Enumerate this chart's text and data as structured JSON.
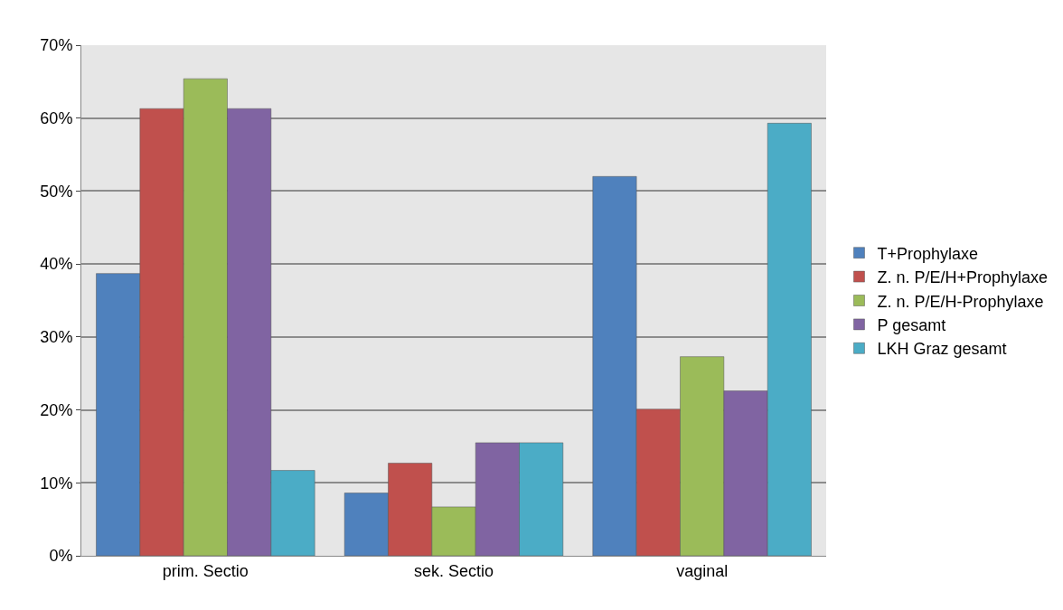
{
  "chart_data": {
    "type": "bar",
    "categories": [
      "prim. Sectio",
      "sek. Sectio",
      "vaginal"
    ],
    "series": [
      {
        "name": "T+Prophylaxe",
        "color": "#4f81bd",
        "values": [
          38.7,
          8.6,
          52.0
        ]
      },
      {
        "name": "Z. n. P/E/H+Prophylaxe",
        "color": "#c0504d",
        "values": [
          61.3,
          12.7,
          20.1
        ]
      },
      {
        "name": "Z. n. P/E/H-Prophylaxe",
        "color": "#9bbb59",
        "values": [
          65.4,
          6.7,
          27.3
        ]
      },
      {
        "name": "P gesamt",
        "color": "#8064a2",
        "values": [
          61.3,
          15.5,
          22.6
        ]
      },
      {
        "name": "LKH Graz gesamt",
        "color": "#4bacc6",
        "values": [
          11.7,
          15.5,
          59.3
        ]
      }
    ],
    "ylim": [
      0,
      70
    ],
    "yticks": [
      {
        "value": 0,
        "label": "0%"
      },
      {
        "value": 10,
        "label": "10%"
      },
      {
        "value": 20,
        "label": "20%"
      },
      {
        "value": 30,
        "label": "30%"
      },
      {
        "value": 40,
        "label": "40%"
      },
      {
        "value": 50,
        "label": "50%"
      },
      {
        "value": 60,
        "label": "60%"
      },
      {
        "value": 70,
        "label": "70%"
      }
    ],
    "grid": "y",
    "legend": "right"
  }
}
